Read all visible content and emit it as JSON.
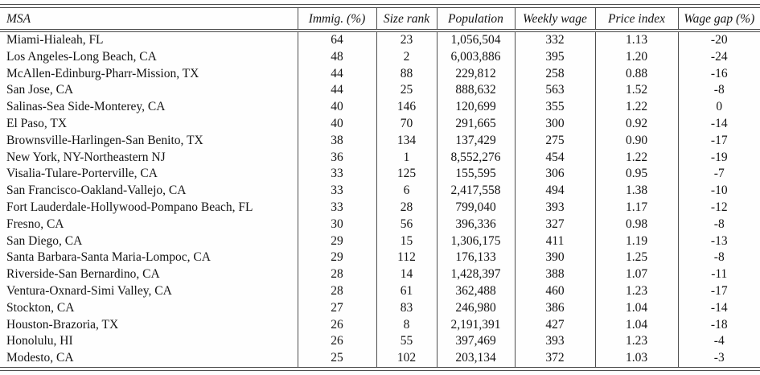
{
  "table": {
    "columns": [
      "MSA",
      "Immig. (%)",
      "Size rank",
      "Population",
      "Weekly wage",
      "Price index",
      "Wage gap (%)"
    ],
    "rows": [
      {
        "msa": "Miami-Hialeah, FL",
        "immig_pct": "64",
        "size_rank": "23",
        "population": "1,056,504",
        "weekly_wage": "332",
        "price_index": "1.13",
        "wage_gap_pct": "-20"
      },
      {
        "msa": "Los Angeles-Long Beach, CA",
        "immig_pct": "48",
        "size_rank": "2",
        "population": "6,003,886",
        "weekly_wage": "395",
        "price_index": "1.20",
        "wage_gap_pct": "-24"
      },
      {
        "msa": "McAllen-Edinburg-Pharr-Mission, TX",
        "immig_pct": "44",
        "size_rank": "88",
        "population": "229,812",
        "weekly_wage": "258",
        "price_index": "0.88",
        "wage_gap_pct": "-16"
      },
      {
        "msa": "San Jose, CA",
        "immig_pct": "44",
        "size_rank": "25",
        "population": "888,632",
        "weekly_wage": "563",
        "price_index": "1.52",
        "wage_gap_pct": "-8"
      },
      {
        "msa": "Salinas-Sea Side-Monterey, CA",
        "immig_pct": "40",
        "size_rank": "146",
        "population": "120,699",
        "weekly_wage": "355",
        "price_index": "1.22",
        "wage_gap_pct": "0"
      },
      {
        "msa": "El Paso, TX",
        "immig_pct": "40",
        "size_rank": "70",
        "population": "291,665",
        "weekly_wage": "300",
        "price_index": "0.92",
        "wage_gap_pct": "-14"
      },
      {
        "msa": "Brownsville-Harlingen-San Benito, TX",
        "immig_pct": "38",
        "size_rank": "134",
        "population": "137,429",
        "weekly_wage": "275",
        "price_index": "0.90",
        "wage_gap_pct": "-17"
      },
      {
        "msa": "New York, NY-Northeastern NJ",
        "immig_pct": "36",
        "size_rank": "1",
        "population": "8,552,276",
        "weekly_wage": "454",
        "price_index": "1.22",
        "wage_gap_pct": "-19"
      },
      {
        "msa": "Visalia-Tulare-Porterville, CA",
        "immig_pct": "33",
        "size_rank": "125",
        "population": "155,595",
        "weekly_wage": "306",
        "price_index": "0.95",
        "wage_gap_pct": "-7"
      },
      {
        "msa": "San Francisco-Oakland-Vallejo, CA",
        "immig_pct": "33",
        "size_rank": "6",
        "population": "2,417,558",
        "weekly_wage": "494",
        "price_index": "1.38",
        "wage_gap_pct": "-10"
      },
      {
        "msa": "Fort Lauderdale-Hollywood-Pompano Beach, FL",
        "immig_pct": "33",
        "size_rank": "28",
        "population": "799,040",
        "weekly_wage": "393",
        "price_index": "1.17",
        "wage_gap_pct": "-12"
      },
      {
        "msa": "Fresno, CA",
        "immig_pct": "30",
        "size_rank": "56",
        "population": "396,336",
        "weekly_wage": "327",
        "price_index": "0.98",
        "wage_gap_pct": "-8"
      },
      {
        "msa": "San Diego, CA",
        "immig_pct": "29",
        "size_rank": "15",
        "population": "1,306,175",
        "weekly_wage": "411",
        "price_index": "1.19",
        "wage_gap_pct": "-13"
      },
      {
        "msa": "Santa Barbara-Santa Maria-Lompoc, CA",
        "immig_pct": "29",
        "size_rank": "112",
        "population": "176,133",
        "weekly_wage": "390",
        "price_index": "1.25",
        "wage_gap_pct": "-8"
      },
      {
        "msa": "Riverside-San Bernardino, CA",
        "immig_pct": "28",
        "size_rank": "14",
        "population": "1,428,397",
        "weekly_wage": "388",
        "price_index": "1.07",
        "wage_gap_pct": "-11"
      },
      {
        "msa": "Ventura-Oxnard-Simi Valley, CA",
        "immig_pct": "28",
        "size_rank": "61",
        "population": "362,488",
        "weekly_wage": "460",
        "price_index": "1.23",
        "wage_gap_pct": "-17"
      },
      {
        "msa": "Stockton, CA",
        "immig_pct": "27",
        "size_rank": "83",
        "population": "246,980",
        "weekly_wage": "386",
        "price_index": "1.04",
        "wage_gap_pct": "-14"
      },
      {
        "msa": "Houston-Brazoria, TX",
        "immig_pct": "26",
        "size_rank": "8",
        "population": "2,191,391",
        "weekly_wage": "427",
        "price_index": "1.04",
        "wage_gap_pct": "-18"
      },
      {
        "msa": "Honolulu, HI",
        "immig_pct": "26",
        "size_rank": "55",
        "population": "397,469",
        "weekly_wage": "393",
        "price_index": "1.23",
        "wage_gap_pct": "-4"
      },
      {
        "msa": "Modesto, CA",
        "immig_pct": "25",
        "size_rank": "102",
        "population": "203,134",
        "weekly_wage": "372",
        "price_index": "1.03",
        "wage_gap_pct": "-3"
      }
    ]
  }
}
